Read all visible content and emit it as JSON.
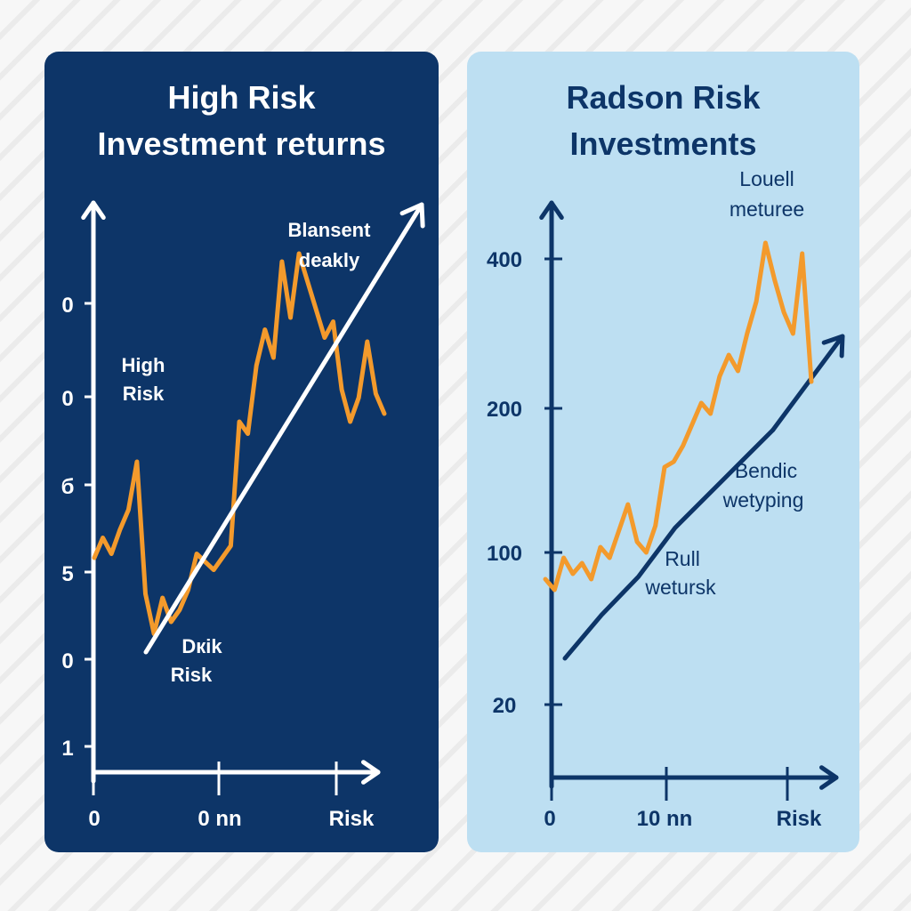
{
  "chart_data": [
    {
      "type": "line",
      "title": [
        "High Risk",
        "Investment returns"
      ],
      "y_tick_labels": [
        "0",
        "0",
        "б",
        "5",
        "0",
        "1"
      ],
      "x_tick_labels": [
        "0",
        "0 nn",
        "Risk"
      ],
      "annotations": [
        {
          "key": "blansent",
          "lines": [
            "Blansent",
            "deakly"
          ]
        },
        {
          "key": "high-risk",
          "lines": [
            "High",
            "Risk"
          ]
        },
        {
          "key": "dkik",
          "lines": [
            "Dкik",
            "Risk"
          ]
        }
      ],
      "colors": {
        "background": "#0d3568",
        "axis": "#ffffff",
        "series": "#f39a2c",
        "trend": "#ffffff",
        "text": "#ffffff"
      },
      "series": [
        {
          "x": [
            0,
            1,
            2,
            3,
            4,
            5,
            6,
            7,
            8,
            9,
            10,
            11,
            12,
            13,
            14,
            15,
            16,
            17,
            18,
            19,
            20,
            21,
            22,
            23,
            24,
            25,
            26,
            27,
            28,
            29,
            30,
            31,
            32,
            33,
            34
          ],
          "y": [
            6.2,
            6.7,
            6.3,
            6.9,
            7.4,
            8.6,
            5.3,
            4.3,
            5.2,
            4.6,
            4.9,
            5.4,
            6.3,
            6.1,
            5.9,
            6.2,
            6.5,
            9.6,
            9.3,
            11.0,
            11.9,
            11.2,
            13.6,
            12.2,
            13.8,
            13.1,
            12.4,
            11.7,
            12.1,
            10.4,
            9.6,
            10.2,
            11.6,
            10.3,
            9.8
          ]
        }
      ],
      "trend": {
        "x": [
          0,
          100
        ],
        "y": [
          0,
          100
        ]
      }
    },
    {
      "type": "line",
      "title": [
        "Radson Risk",
        "Investments"
      ],
      "y_tick_labels": [
        "400",
        "200",
        "100",
        "20"
      ],
      "x_tick_labels": [
        "0",
        "10 nn",
        "Risk"
      ],
      "annotations": [
        {
          "key": "louell",
          "lines": [
            "Louell",
            "meturee"
          ]
        },
        {
          "key": "bendic",
          "lines": [
            "Bendic",
            "wetyping"
          ]
        },
        {
          "key": "rull",
          "lines": [
            "Rull",
            "wetursk"
          ]
        }
      ],
      "colors": {
        "background": "#bddff2",
        "axis": "#0d3568",
        "series": "#f39a2c",
        "trend": "#0d3568",
        "text": "#0d3568"
      },
      "series": [
        {
          "x": [
            0,
            1,
            2,
            3,
            4,
            5,
            6,
            7,
            8,
            9,
            10,
            11,
            12,
            13,
            14,
            15,
            16,
            17,
            18,
            19,
            20,
            21,
            22,
            23,
            24,
            25,
            26,
            27,
            28,
            29
          ],
          "y": [
            90,
            80,
            110,
            95,
            105,
            90,
            120,
            110,
            135,
            160,
            125,
            115,
            140,
            195,
            200,
            215,
            235,
            255,
            245,
            280,
            300,
            285,
            320,
            350,
            405,
            370,
            340,
            320,
            395,
            275
          ]
        }
      ],
      "trend": {
        "x": [
          0,
          15,
          30,
          45,
          65,
          85,
          100
        ],
        "y": [
          20,
          60,
          95,
          140,
          185,
          230,
          290
        ]
      }
    }
  ]
}
